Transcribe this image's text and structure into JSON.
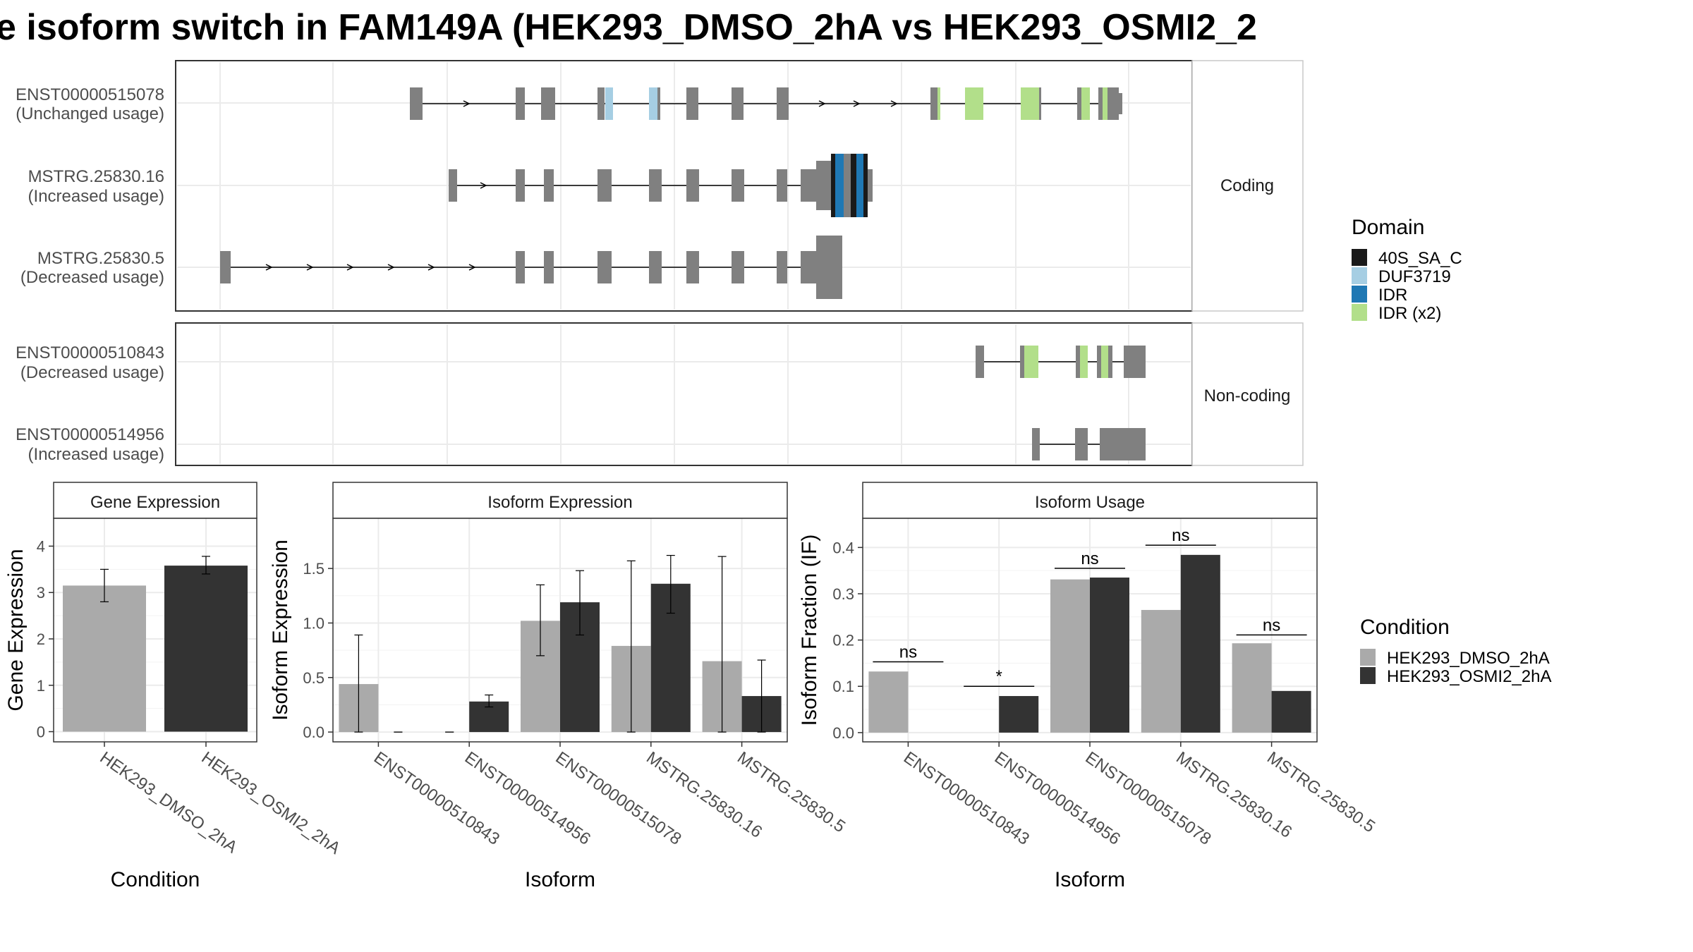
{
  "title": "e isoform switch in FAM149A (HEK293_DMSO_2hA vs HEK293_OSMI2_2",
  "colors": {
    "exon": "#808080",
    "dmso": "#AAAAAA",
    "osmi": "#333333",
    "domain_40S": "#1A1A1A",
    "domain_DUF": "#A6CEE3",
    "domain_IDR": "#1F78B4",
    "domain_IDRx2": "#B2DF8A",
    "panel_bg": "#FFFFFF",
    "strip_bg": "#FFFFFF",
    "grid": "#EBEBEB"
  },
  "legend_domain": {
    "title": "Domain",
    "entries": [
      {
        "key": "domain_40S",
        "label": "40S_SA_C"
      },
      {
        "key": "domain_DUF",
        "label": "DUF3719"
      },
      {
        "key": "domain_IDR",
        "label": "IDR"
      },
      {
        "key": "domain_IDRx2",
        "label": "IDR (x2)"
      }
    ]
  },
  "legend_condition": {
    "title": "Condition",
    "entries": [
      {
        "key": "dmso",
        "label": "HEK293_DMSO_2hA"
      },
      {
        "key": "osmi",
        "label": "HEK293_OSMI2_2hA"
      }
    ]
  },
  "structure": {
    "coding": {
      "strip": "Coding",
      "isoforms": [
        {
          "id": "ENST00000515078",
          "usage": "(Unchanged usage)"
        },
        {
          "id": "MSTRG.25830.16",
          "usage": "(Increased usage)"
        },
        {
          "id": "MSTRG.25830.5",
          "usage": "(Decreased usage)"
        }
      ]
    },
    "noncoding": {
      "strip": "Non-coding",
      "isoforms": [
        {
          "id": "ENST00000510843",
          "usage": "(Decreased usage)"
        },
        {
          "id": "ENST00000514956",
          "usage": "(Increased usage)"
        }
      ]
    }
  },
  "chart_data": [
    {
      "type": "bar",
      "title": "Gene Expression",
      "xlabel": "Condition",
      "ylabel": "Gene Expression",
      "categories": [
        "HEK293_DMSO_2hA",
        "HEK293_OSMI2_2hA"
      ],
      "values": [
        3.15,
        3.58
      ],
      "errors": [
        [
          2.8,
          3.5
        ],
        [
          3.4,
          3.78
        ]
      ],
      "ylim": [
        -0.22,
        4.6
      ],
      "yticks": [
        "0",
        "1",
        "2",
        "3",
        "4"
      ]
    },
    {
      "type": "bar",
      "title": "Isoform Expression",
      "xlabel": "Isoform",
      "ylabel": "Isoform Expression",
      "categories": [
        "ENST00000510843",
        "ENST00000514956",
        "ENST00000515078",
        "MSTRG.25830.16",
        "MSTRG.25830.5"
      ],
      "series": [
        {
          "name": "HEK293_DMSO_2hA",
          "values": [
            0.44,
            0,
            1.02,
            0.79,
            0.65
          ],
          "errors": [
            [
              0,
              0.89
            ],
            [
              0,
              0
            ],
            [
              0.7,
              1.35
            ],
            [
              0,
              1.57
            ],
            [
              0,
              1.61
            ]
          ]
        },
        {
          "name": "HEK293_OSMI2_2hA",
          "values": [
            0,
            0.28,
            1.19,
            1.36,
            0.33
          ],
          "errors": [
            [
              0,
              0
            ],
            [
              0.23,
              0.34
            ],
            [
              0.89,
              1.48
            ],
            [
              1.09,
              1.62
            ],
            [
              0,
              0.66
            ]
          ]
        }
      ],
      "ylim": [
        -0.09,
        1.96
      ],
      "yticks": [
        "0.0",
        "0.5",
        "1.0",
        "1.5"
      ]
    },
    {
      "type": "bar",
      "title": "Isoform Usage",
      "xlabel": "Isoform",
      "ylabel": "Isoform Fraction (IF)",
      "categories": [
        "ENST00000510843",
        "ENST00000514956",
        "ENST00000515078",
        "MSTRG.25830.16",
        "MSTRG.25830.5"
      ],
      "series": [
        {
          "name": "HEK293_DMSO_2hA",
          "values": [
            0.132,
            0,
            0.331,
            0.265,
            0.193
          ]
        },
        {
          "name": "HEK293_OSMI2_2hA",
          "values": [
            0,
            0.079,
            0.335,
            0.384,
            0.09
          ]
        }
      ],
      "significance": [
        {
          "label": "ns",
          "y": 0.153
        },
        {
          "label": "*",
          "y": 0.1
        },
        {
          "label": "ns",
          "y": 0.355
        },
        {
          "label": "ns",
          "y": 0.405
        },
        {
          "label": "ns",
          "y": 0.211
        }
      ],
      "ylim": [
        -0.02,
        0.463
      ],
      "yticks": [
        "0.0",
        "0.1",
        "0.2",
        "0.3",
        "0.4"
      ]
    }
  ]
}
